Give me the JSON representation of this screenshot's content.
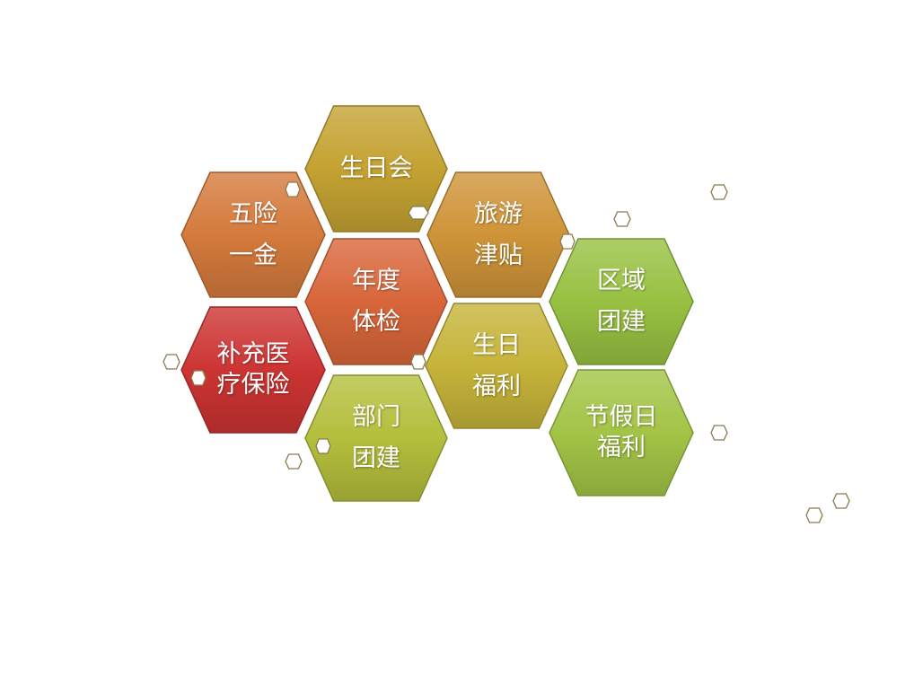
{
  "hexagons": [
    {
      "id": "wuxian",
      "lines": [
        "五险",
        "一金"
      ],
      "color": "#d47a3c"
    },
    {
      "id": "shengrihui",
      "lines": [
        "生日会"
      ],
      "color": "#c4a232"
    },
    {
      "id": "lvyou",
      "lines": [
        "旅游",
        "津贴"
      ],
      "color": "#cf9438"
    },
    {
      "id": "tijian",
      "lines": [
        "年度",
        "体检"
      ],
      "color": "#d8663a"
    },
    {
      "id": "yiliao",
      "lines": [
        "补充医",
        "疗保险"
      ],
      "color": "#cc3432"
    },
    {
      "id": "shengrifuli",
      "lines": [
        "生日",
        "福利"
      ],
      "color": "#c6b43a"
    },
    {
      "id": "bumen",
      "lines": [
        "部门",
        "团建"
      ],
      "color": "#b4bf3c"
    },
    {
      "id": "quyu",
      "lines": [
        "区域",
        "团建"
      ],
      "color": "#98c142"
    },
    {
      "id": "jiari",
      "lines": [
        "节假日",
        "福利"
      ],
      "color": "#a3c446"
    }
  ],
  "decor_color": "#8a7a50"
}
